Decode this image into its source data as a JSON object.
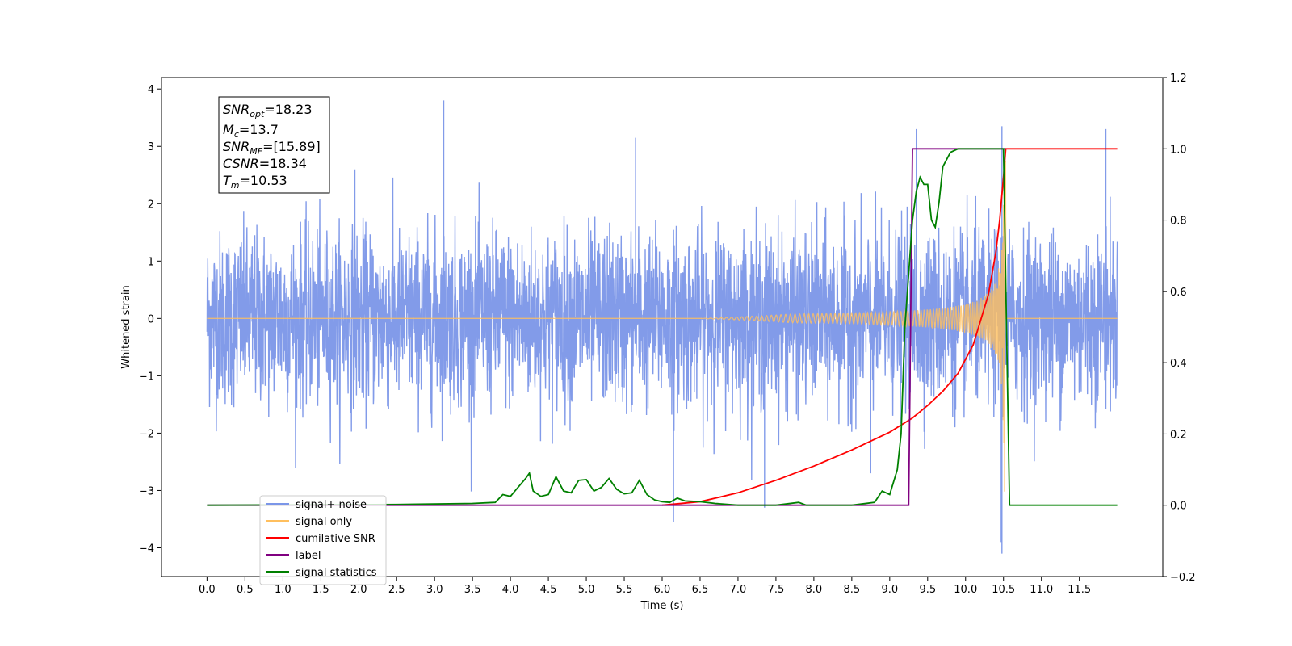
{
  "chart_data": {
    "type": "line",
    "xlabel": "Time (s)",
    "ylabel": "Whitened strain",
    "xlim": [
      -0.6,
      12.6
    ],
    "ylim_left": [
      -4.5,
      4.2
    ],
    "ylim_right": [
      -0.2,
      1.2
    ],
    "x_ticks": [
      "0.0",
      "0.5",
      "1.0",
      "1.5",
      "2.0",
      "2.5",
      "3.0",
      "3.5",
      "4.0",
      "4.5",
      "5.0",
      "5.5",
      "6.0",
      "6.5",
      "7.0",
      "7.5",
      "8.0",
      "8.5",
      "9.0",
      "9.5",
      "10.0",
      "10.5",
      "11.0",
      "11.5"
    ],
    "y_ticks_left": [
      "4",
      "3",
      "2",
      "1",
      "0",
      "−1",
      "−2",
      "−3",
      "−4"
    ],
    "y_ticks_right": [
      "1.2",
      "1.0",
      "0.8",
      "0.6",
      "0.4",
      "0.2",
      "0.0",
      "−0.2"
    ],
    "annotation": {
      "snr_opt_value": "=18.23",
      "mc_value": "=13.7",
      "snr_mf_value": "=[15.89]",
      "csnr_value": "=18.34",
      "tm_value": "=10.53"
    },
    "legend": {
      "placement": "lower-left",
      "items": [
        {
          "label": "signal+ noise",
          "color": "#7b96e8"
        },
        {
          "label": "signal only",
          "color": "#ffbf5e"
        },
        {
          "label": "cumilative SNR",
          "color": "#ff0000"
        },
        {
          "label": "label",
          "color": "#800080"
        },
        {
          "label": "signal statistics",
          "color": "#008000"
        }
      ]
    },
    "series": [
      {
        "name": "signal+ noise",
        "axis": "left",
        "color": "#7b96e8",
        "x_range": [
          0.0,
          12.0
        ],
        "noise_sigma": 0.75,
        "spikes": [
          [
            3.12,
            3.8
          ],
          [
            9.35,
            3.3
          ],
          [
            10.48,
            3.35
          ],
          [
            11.85,
            3.3
          ],
          [
            10.48,
            -4.1
          ],
          [
            10.47,
            -3.9
          ],
          [
            6.15,
            -3.55
          ],
          [
            7.35,
            -3.3
          ],
          [
            1.95,
            2.6
          ],
          [
            5.65,
            3.15
          ],
          [
            8.75,
            -2.7
          ]
        ]
      },
      {
        "name": "signal only",
        "axis": "left",
        "color": "#ffbf5e",
        "chirp_start": 6.5,
        "merger_time": 10.53,
        "peak_amplitude": 3.1
      },
      {
        "name": "cumilative SNR",
        "axis": "right",
        "color": "#ff0000",
        "x": [
          6.0,
          6.5,
          7.0,
          7.5,
          8.0,
          8.5,
          9.0,
          9.3,
          9.5,
          9.7,
          9.9,
          10.1,
          10.3,
          10.4,
          10.45,
          10.5,
          10.53,
          10.55,
          12.0
        ],
        "y": [
          0.0,
          0.01,
          0.035,
          0.07,
          0.11,
          0.155,
          0.205,
          0.245,
          0.28,
          0.32,
          0.37,
          0.45,
          0.59,
          0.71,
          0.8,
          0.92,
          1.0,
          1.0,
          1.0
        ]
      },
      {
        "name": "label",
        "axis": "right",
        "color": "#800080",
        "x": [
          0.0,
          9.25,
          9.3,
          10.53
        ],
        "y": [
          0.0,
          0.0,
          1.0,
          1.0
        ]
      },
      {
        "name": "signal statistics",
        "axis": "right",
        "color": "#008000",
        "x": [
          0.0,
          2.5,
          3.5,
          3.8,
          3.9,
          4.0,
          4.1,
          4.2,
          4.25,
          4.3,
          4.4,
          4.5,
          4.6,
          4.7,
          4.8,
          4.9,
          5.0,
          5.1,
          5.2,
          5.3,
          5.4,
          5.5,
          5.6,
          5.7,
          5.8,
          5.9,
          6.0,
          6.1,
          6.2,
          6.3,
          6.5,
          6.7,
          7.0,
          7.5,
          7.8,
          7.9,
          8.5,
          8.8,
          8.9,
          9.0,
          9.1,
          9.15,
          9.2,
          9.3,
          9.35,
          9.4,
          9.45,
          9.5,
          9.55,
          9.6,
          9.65,
          9.7,
          9.8,
          9.9,
          10.0,
          10.5,
          10.58,
          12.0
        ],
        "y": [
          0.0,
          0.002,
          0.005,
          0.008,
          0.03,
          0.025,
          0.05,
          0.075,
          0.09,
          0.04,
          0.025,
          0.03,
          0.08,
          0.04,
          0.035,
          0.07,
          0.072,
          0.04,
          0.05,
          0.075,
          0.045,
          0.032,
          0.035,
          0.07,
          0.03,
          0.015,
          0.01,
          0.008,
          0.02,
          0.012,
          0.01,
          0.005,
          0.0,
          0.0,
          0.008,
          0.0,
          0.0,
          0.008,
          0.04,
          0.03,
          0.1,
          0.2,
          0.5,
          0.8,
          0.88,
          0.92,
          0.9,
          0.9,
          0.8,
          0.78,
          0.85,
          0.95,
          0.99,
          1.0,
          1.0,
          1.0,
          0.0,
          0.0
        ]
      }
    ]
  }
}
